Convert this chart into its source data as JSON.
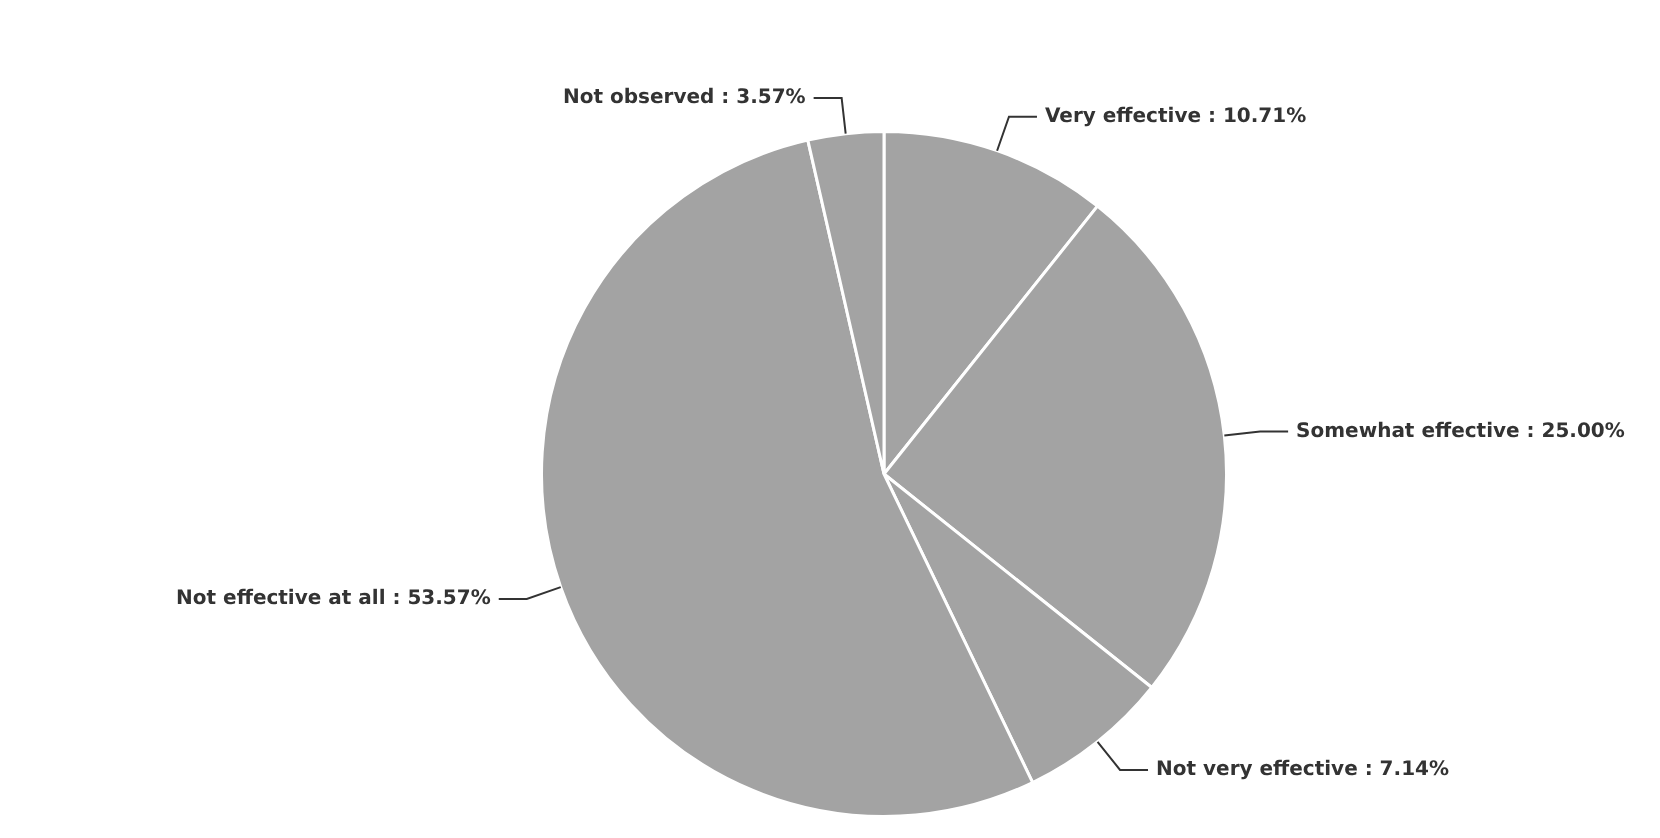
{
  "chart_data": {
    "type": "pie",
    "categories": [
      "Very effective",
      "Somewhat effective",
      "Not very effective",
      "Not effective at all",
      "Not observed"
    ],
    "values": [
      10.71,
      25.0,
      7.14,
      53.57,
      3.57
    ],
    "value_labels": [
      "10.71%",
      "25.00%",
      "7.14%",
      "53.57%",
      "3.57%"
    ],
    "colors": [
      "#a3a3a3",
      "#a3a3a3",
      "#a3a3a3",
      "#a3a3a3",
      "#a3a3a3"
    ],
    "legend": false
  }
}
